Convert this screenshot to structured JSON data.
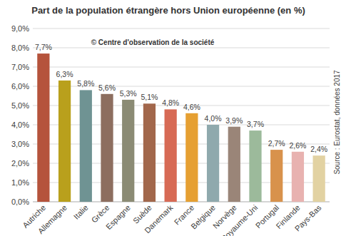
{
  "chart_data": {
    "type": "bar",
    "title": "Part de la population étrangère hors Union européenne (en %)",
    "annotations": [
      "© Centre d'observation de la société",
      "Source : Eurostat, données 2017"
    ],
    "categories": [
      "Autriche",
      "Allemagne",
      "Italie",
      "Grèce",
      "Espagne",
      "Suède",
      "Danemark",
      "France",
      "Belgique",
      "Norvège",
      "Royaume-Uni",
      "Portugal",
      "Finlande",
      "Pays-Bas"
    ],
    "values": [
      7.7,
      6.3,
      5.8,
      5.6,
      5.3,
      5.1,
      4.8,
      4.6,
      4.0,
      3.9,
      3.7,
      2.7,
      2.6,
      2.4
    ],
    "value_labels": [
      "7,7%",
      "6,3%",
      "5,8%",
      "5,6%",
      "5,3%",
      "5,1%",
      "4,8%",
      "4,6%",
      "4,0%",
      "3,9%",
      "3,7%",
      "2,7%",
      "2,6%",
      "2,4%"
    ],
    "colors": [
      "#b5533c",
      "#b9a01c",
      "#6f9393",
      "#8d6e5f",
      "#8b8b74",
      "#a2674b",
      "#d76a55",
      "#e6a032",
      "#8fa9ad",
      "#9a8578",
      "#9cba9b",
      "#d8924c",
      "#e8b2b0",
      "#e2d2a2"
    ],
    "ylim": [
      0,
      9
    ],
    "yticks": [
      {
        "value": 0,
        "label": "0,0%"
      },
      {
        "value": 1,
        "label": "1,0%"
      },
      {
        "value": 2,
        "label": "2,0%"
      },
      {
        "value": 3,
        "label": "3,0%"
      },
      {
        "value": 4,
        "label": "4,0%"
      },
      {
        "value": 5,
        "label": "5,0%"
      },
      {
        "value": 6,
        "label": "6,0%"
      },
      {
        "value": 7,
        "label": "7,0%"
      },
      {
        "value": 8,
        "label": "8,0%"
      },
      {
        "value": 9,
        "label": "9,0%"
      }
    ],
    "grid": true,
    "data_labels": true
  }
}
